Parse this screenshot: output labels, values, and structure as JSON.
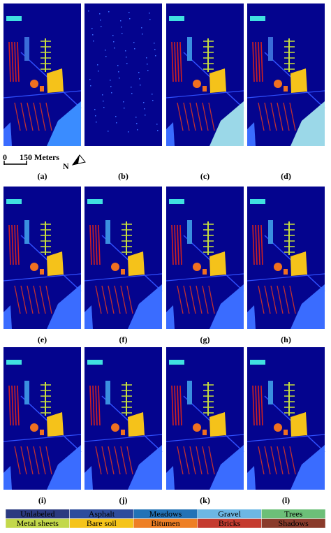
{
  "panels": [
    {
      "label": "(a)"
    },
    {
      "label": "(b)"
    },
    {
      "label": "(c)"
    },
    {
      "label": "(d)"
    },
    {
      "label": "(e)"
    },
    {
      "label": "(f)"
    },
    {
      "label": "(g)"
    },
    {
      "label": "(h)"
    },
    {
      "label": "(i)"
    },
    {
      "label": "(j)"
    },
    {
      "label": "(k)"
    },
    {
      "label": "(l)"
    }
  ],
  "scale_bar": {
    "start": "0",
    "length": "150 Meters",
    "north": "N"
  },
  "legend": [
    {
      "name": "Unlabeled",
      "color": "#2b3a80"
    },
    {
      "name": "Asphalt",
      "color": "#2e4c9c"
    },
    {
      "name": "Meadows",
      "color": "#2272b6"
    },
    {
      "name": "Gravel",
      "color": "#6db7e4"
    },
    {
      "name": "Trees",
      "color": "#6cbf78"
    },
    {
      "name": "Metal sheets",
      "color": "#c3d84b"
    },
    {
      "name": "Bare soil",
      "color": "#f5c41a"
    },
    {
      "name": "Bitumen",
      "color": "#ee7f24"
    },
    {
      "name": "Bricks",
      "color": "#c53b2f"
    },
    {
      "name": "Shadows",
      "color": "#8a3b2b"
    }
  ]
}
